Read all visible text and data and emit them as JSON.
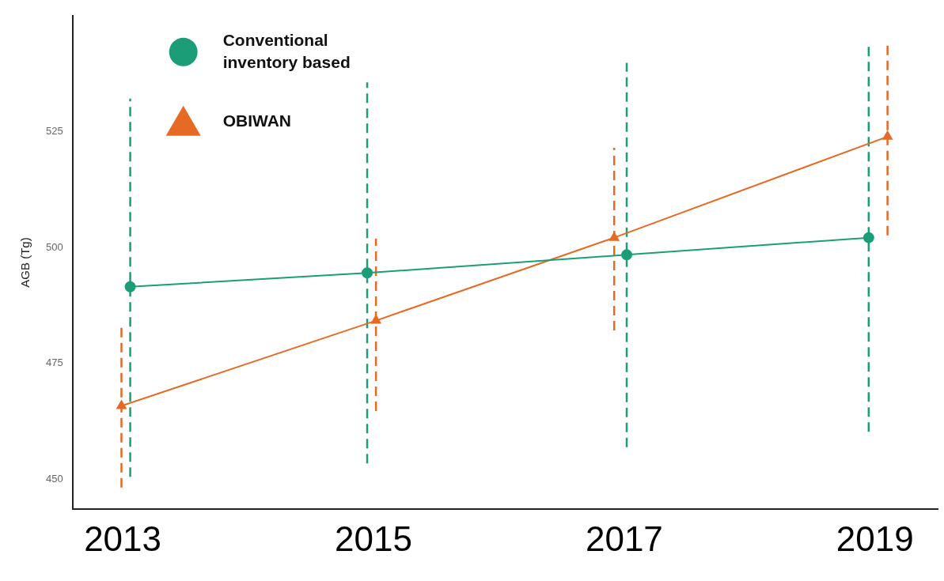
{
  "chart_data": {
    "type": "line",
    "ylabel": "AGB (Tg)",
    "xlim": [
      2012.6,
      2019.5
    ],
    "xticks": [
      2013,
      2015,
      2017,
      2019
    ],
    "ylim": [
      443.5,
      550
    ],
    "yticks": [
      450,
      475,
      500,
      525
    ],
    "grid": false,
    "legend": "top left",
    "line_style": "solid",
    "series": [
      {
        "name": "Conventional inventory based",
        "color": "#1b9e77",
        "marker": "circle",
        "x": [
          2013.06,
          2014.95,
          2017.02,
          2018.95
        ],
        "values": [
          491.5,
          494.5,
          498.4,
          502.1
        ],
        "errors": [
          [
            450.5,
            532.1
          ],
          [
            453.4,
            535.6
          ],
          [
            456.9,
            539.8
          ],
          [
            460.2,
            543.7
          ]
        ]
      },
      {
        "name": "OBIWAN",
        "color": "#e66a24",
        "marker": "triangle",
        "x": [
          2012.99,
          2015.02,
          2016.92,
          2019.1
        ],
        "values": [
          465.8,
          484.2,
          502.1,
          523.9
        ],
        "errors": [
          [
            448.2,
            483.2
          ],
          [
            464.7,
            501.9
          ],
          [
            482.1,
            521.5
          ],
          [
            502.6,
            544
          ]
        ]
      }
    ]
  }
}
